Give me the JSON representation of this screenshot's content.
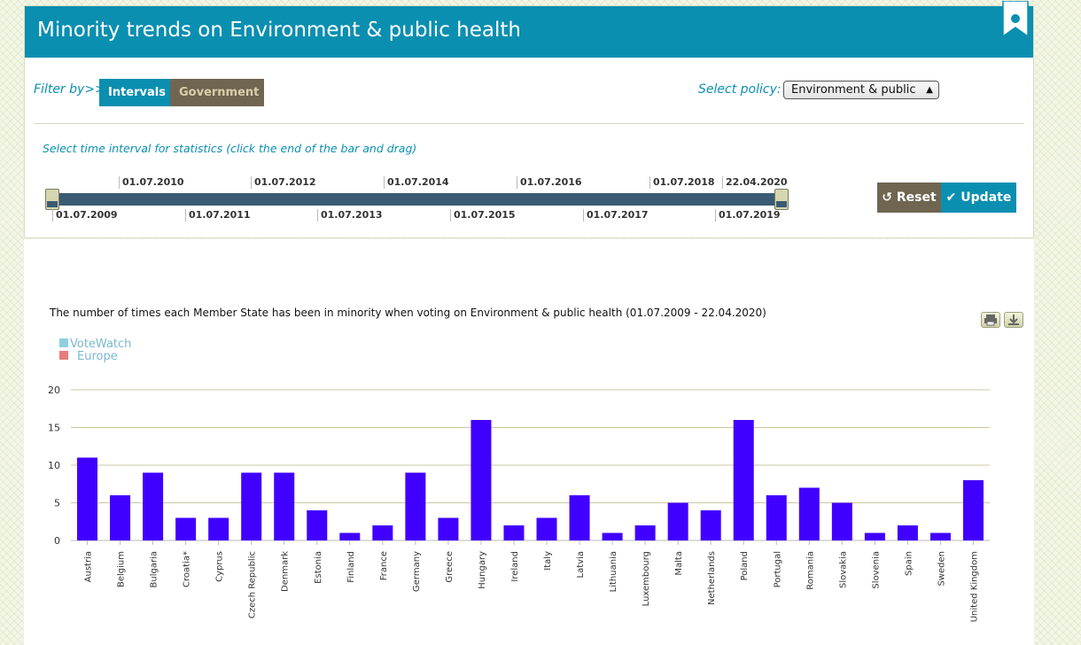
{
  "header": {
    "title": "Minority trends on Environment & public health"
  },
  "filter": {
    "label": "Filter by>>",
    "tabs": [
      {
        "label": "Intervals"
      },
      {
        "label": "Government"
      }
    ]
  },
  "policy": {
    "label": "Select policy:",
    "selected": "Environment & public"
  },
  "interval": {
    "hint": "Select time interval for statistics (click the end of the bar and drag)",
    "ticks_top": [
      "01.07.2010",
      "01.07.2012",
      "01.07.2014",
      "01.07.2016",
      "01.07.2018",
      "22.04.2020"
    ],
    "ticks_bottom": [
      "01.07.2009",
      "01.07.2011",
      "01.07.2013",
      "01.07.2015",
      "01.07.2017",
      "01.07.2019"
    ]
  },
  "buttons": {
    "reset": "Reset",
    "update": "Update"
  },
  "logo": {
    "line1": "VoteWatch",
    "line2": "Europe"
  },
  "chart_data": {
    "type": "bar",
    "title": "The number of times each Member State has been in minority when voting on Environment & public health (01.07.2009 - 22.04.2020)",
    "categories": [
      "Austria",
      "Belgium",
      "Bulgaria",
      "Croatia*",
      "Cyprus",
      "Czech Republic",
      "Denmark",
      "Estonia",
      "Finland",
      "France",
      "Germany",
      "Greece",
      "Hungary",
      "Ireland",
      "Italy",
      "Latvia",
      "Lithuania",
      "Luxembourg",
      "Malta",
      "Netherlands",
      "Poland",
      "Portugal",
      "Romania",
      "Slovakia",
      "Slovenia",
      "Spain",
      "Sweden",
      "United Kingdom"
    ],
    "values": [
      11,
      6,
      9,
      3,
      3,
      9,
      9,
      4,
      1,
      2,
      9,
      3,
      16,
      2,
      3,
      6,
      1,
      2,
      5,
      4,
      16,
      6,
      7,
      5,
      1,
      2,
      1,
      8
    ],
    "yticks": [
      0,
      5,
      10,
      15,
      20
    ],
    "ylim": [
      0,
      20
    ],
    "bar_color": "#4000ff",
    "grid": true
  }
}
